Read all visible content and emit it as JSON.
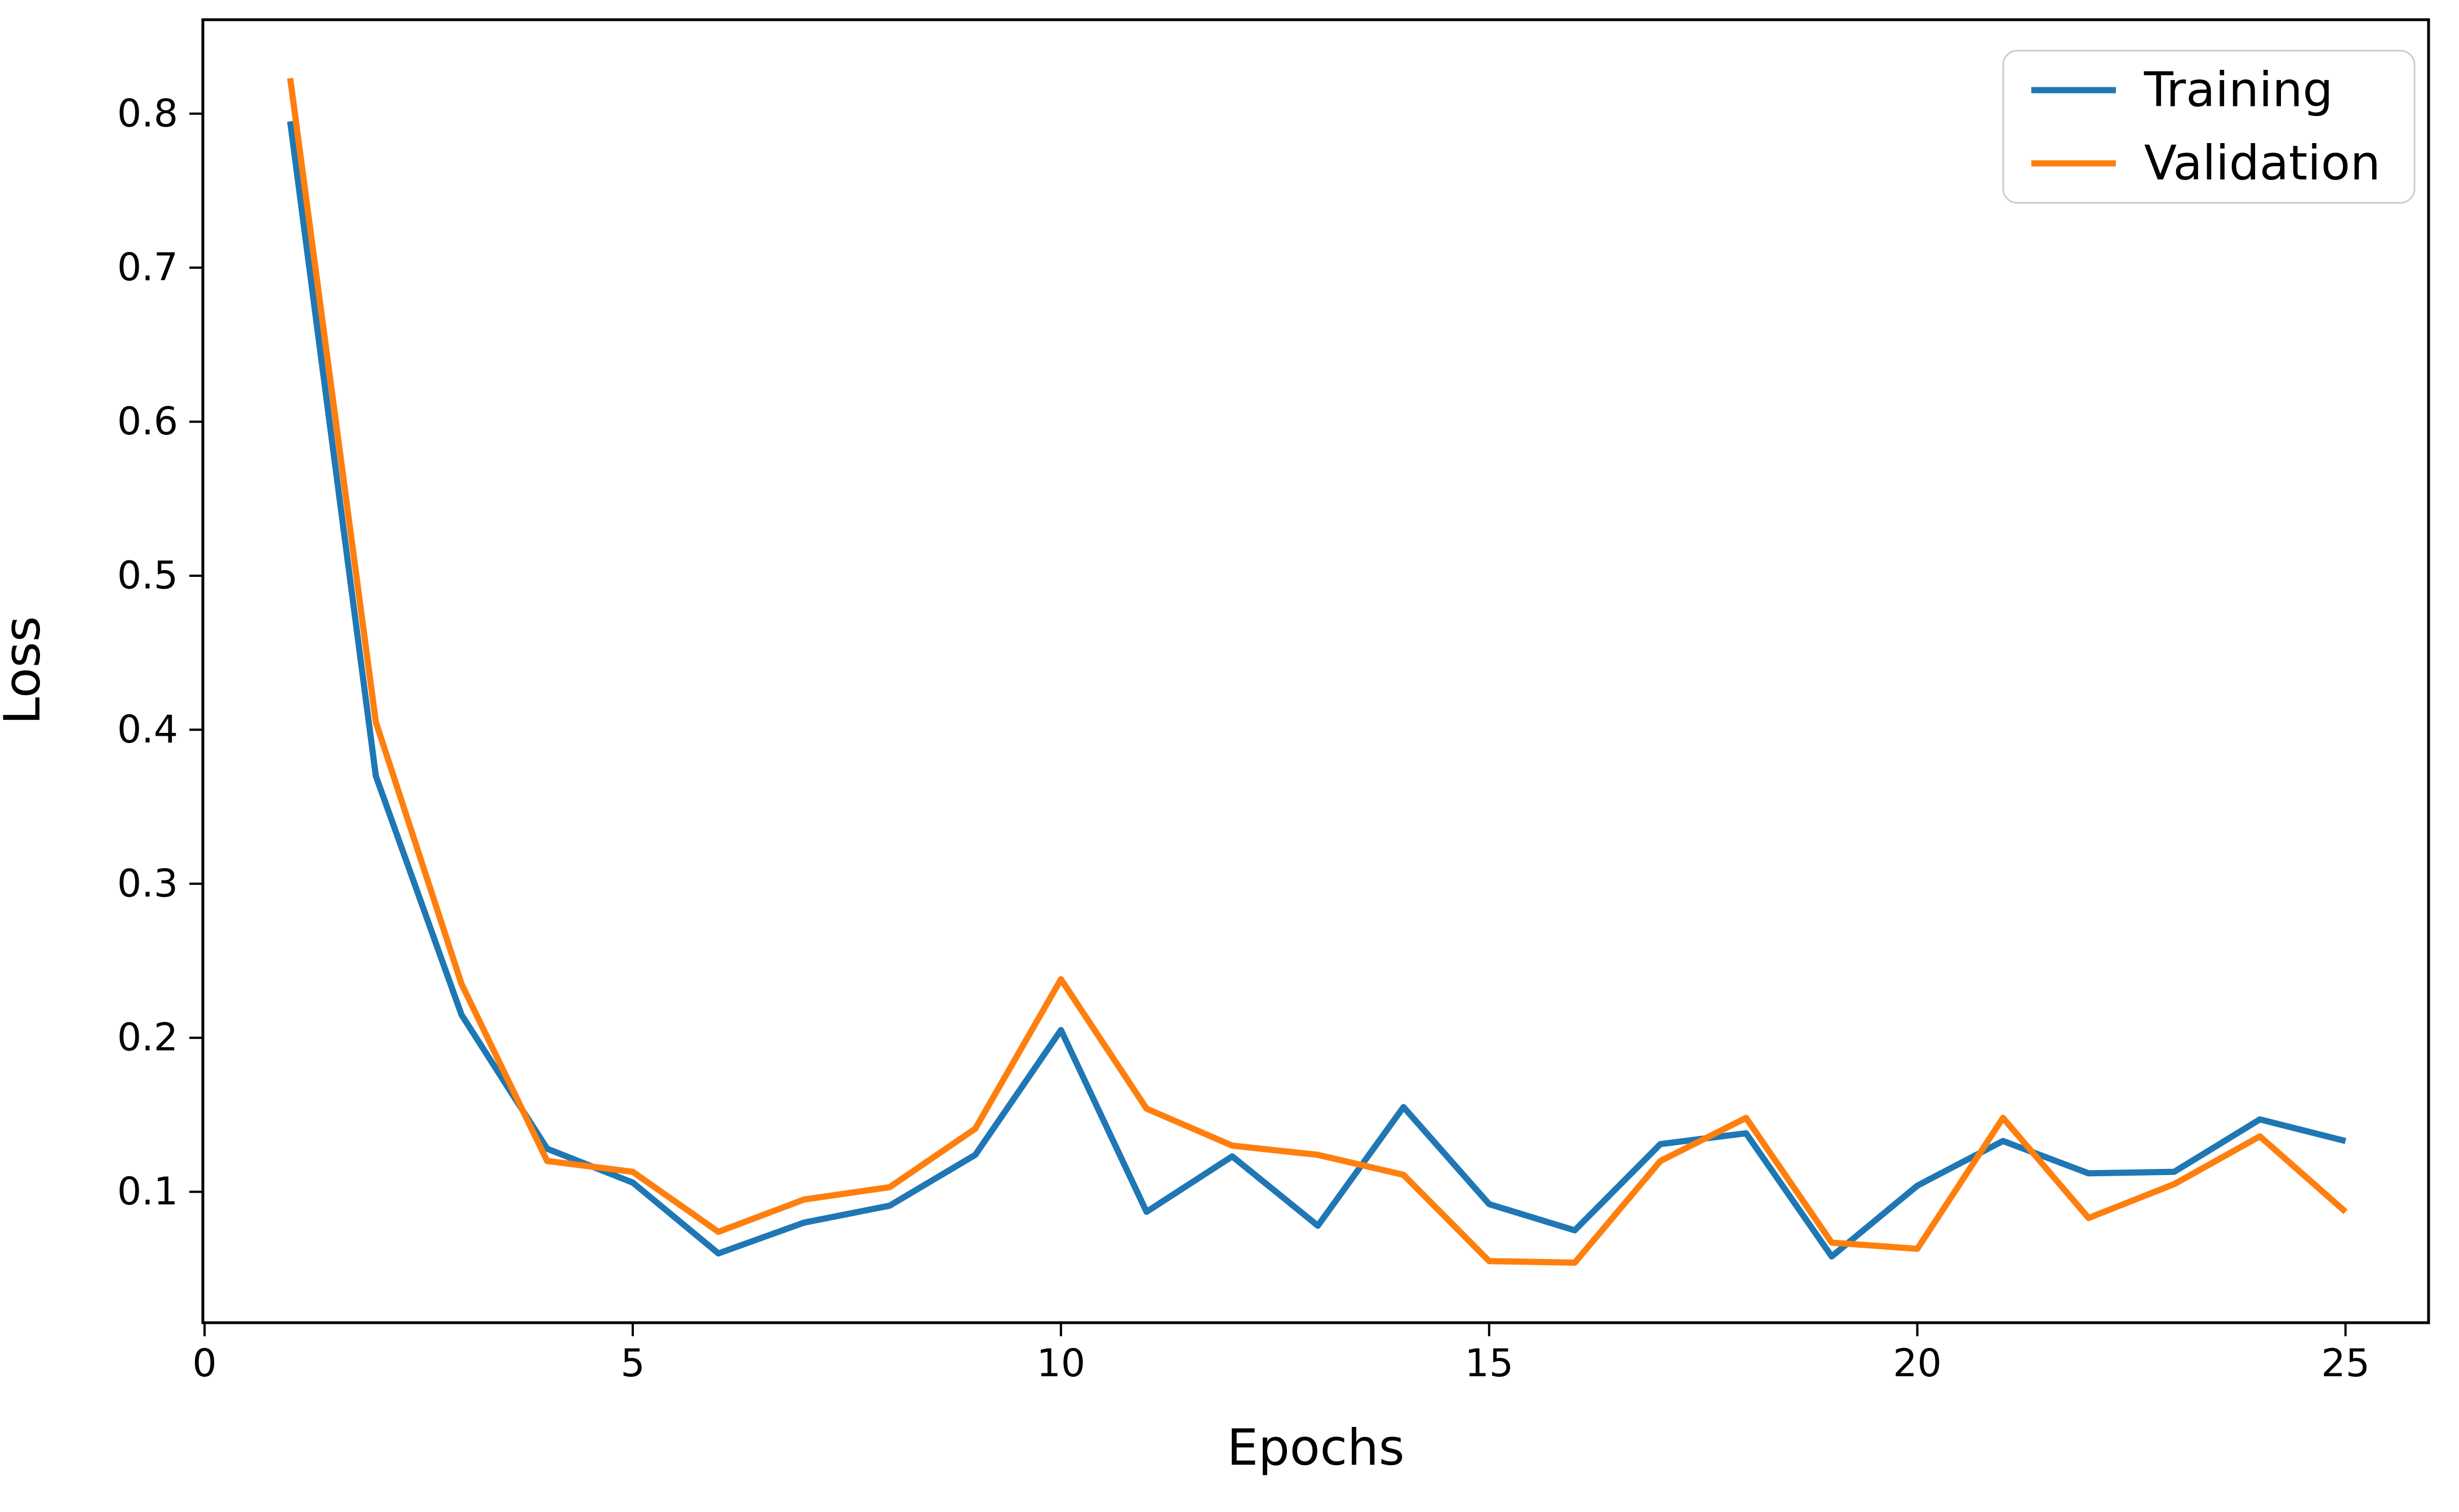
{
  "figure": {
    "background_color": "#ffffff",
    "axis_color": "#000000",
    "legend_frame_color": "#cccccc"
  },
  "chart_data": {
    "type": "line",
    "title": "",
    "xlabel": "Epochs",
    "ylabel": "Loss",
    "grid": false,
    "legend_position": "upper right",
    "xlim": [
      -0.02,
      25.97
    ],
    "ylim": [
      0.015,
      0.861
    ],
    "x_ticks": [
      0,
      5,
      10,
      15,
      20,
      25
    ],
    "y_ticks": [
      0.1,
      0.2,
      0.3,
      0.4,
      0.5,
      0.6,
      0.7,
      0.8
    ],
    "x": [
      1,
      2,
      3,
      4,
      5,
      6,
      7,
      8,
      9,
      10,
      11,
      12,
      13,
      14,
      15,
      16,
      17,
      18,
      19,
      20,
      21,
      22,
      23,
      24,
      25
    ],
    "series": [
      {
        "name": "Training",
        "color": "#1f77b4",
        "values": [
          0.795,
          0.37,
          0.215,
          0.128,
          0.106,
          0.06,
          0.08,
          0.091,
          0.124,
          0.205,
          0.087,
          0.123,
          0.078,
          0.155,
          0.092,
          0.075,
          0.131,
          0.138,
          0.058,
          0.104,
          0.133,
          0.112,
          0.113,
          0.147,
          0.133
        ]
      },
      {
        "name": "Validation",
        "color": "#ff7f0e",
        "values": [
          0.823,
          0.405,
          0.235,
          0.12,
          0.113,
          0.074,
          0.095,
          0.103,
          0.141,
          0.238,
          0.154,
          0.13,
          0.124,
          0.111,
          0.055,
          0.054,
          0.12,
          0.148,
          0.067,
          0.063,
          0.148,
          0.083,
          0.105,
          0.136,
          0.087
        ]
      }
    ]
  }
}
